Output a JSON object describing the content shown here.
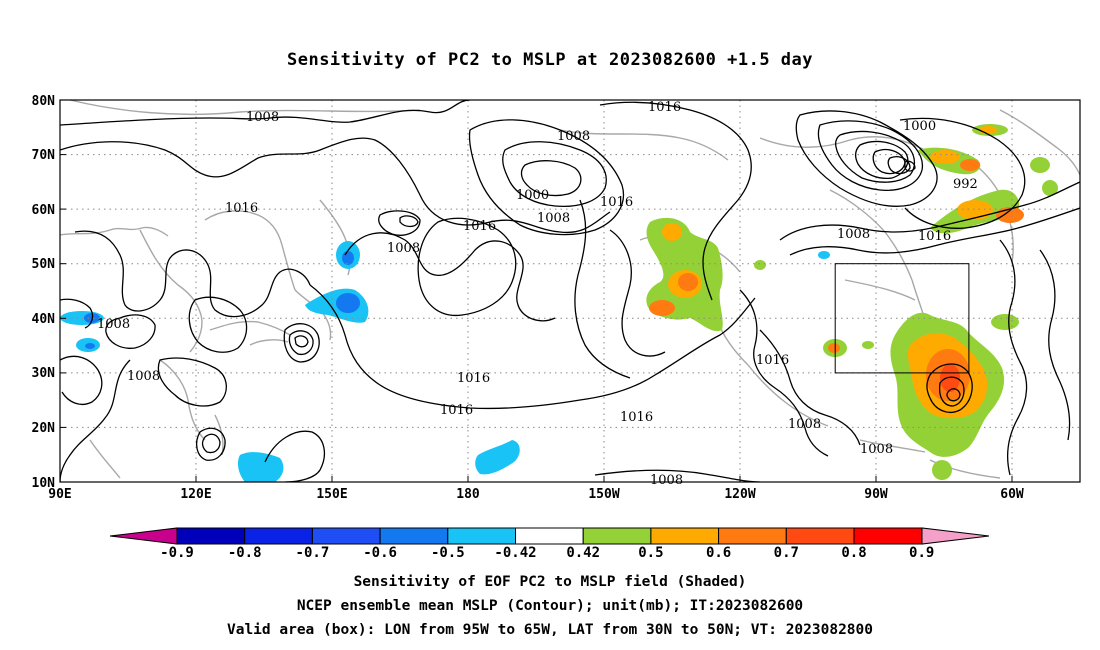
{
  "title": "Sensitivity of PC2 to MSLP at 2023082600 +1.5 day",
  "map": {
    "lat_ticks": [
      "80N",
      "70N",
      "60N",
      "50N",
      "40N",
      "30N",
      "20N",
      "10N"
    ],
    "lon_ticks": [
      "90E",
      "120E",
      "150E",
      "180",
      "150W",
      "120W",
      "90W",
      "60W"
    ],
    "contour_labels": [
      {
        "text": "1008"
      },
      {
        "text": "1016"
      },
      {
        "text": "1008"
      },
      {
        "text": "1000"
      },
      {
        "text": "1008"
      },
      {
        "text": "1016"
      },
      {
        "text": "1016"
      },
      {
        "text": "1008"
      },
      {
        "text": "1008"
      },
      {
        "text": "1008"
      },
      {
        "text": "1016"
      },
      {
        "text": "1016"
      },
      {
        "text": "1016"
      },
      {
        "text": "1016"
      },
      {
        "text": "1016"
      },
      {
        "text": "1008"
      },
      {
        "text": "1000"
      },
      {
        "text": "992"
      },
      {
        "text": "1008"
      },
      {
        "text": "1016"
      },
      {
        "text": "1008"
      },
      {
        "text": "1008"
      }
    ],
    "valid_box": {
      "lon_west": "95W",
      "lon_east": "65W",
      "lat_south": "30N",
      "lat_north": "50N"
    }
  },
  "colorbar": {
    "levels": [
      "-0.9",
      "-0.8",
      "-0.7",
      "-0.6",
      "-0.5",
      "-0.42",
      "0.42",
      "0.5",
      "0.6",
      "0.7",
      "0.8",
      "0.9"
    ],
    "colors": [
      "#0000bb",
      "#0a22e6",
      "#1f4ef5",
      "#1478f0",
      "#19c3f5",
      "#ffffff",
      "#94d136",
      "#ffaa00",
      "#ff7a11",
      "#ff4a12",
      "#ff0000"
    ],
    "low_extend_color": "#c8008c",
    "high_extend_color": "#f4a0c8"
  },
  "captions": [
    "Sensitivity of EOF PC2 to MSLP field (Shaded)",
    "NCEP ensemble mean MSLP (Contour); unit(mb); IT:2023082600",
    "Valid area (box): LON from 95W to 65W, LAT from 30N to 50N; VT: 2023082800"
  ]
}
